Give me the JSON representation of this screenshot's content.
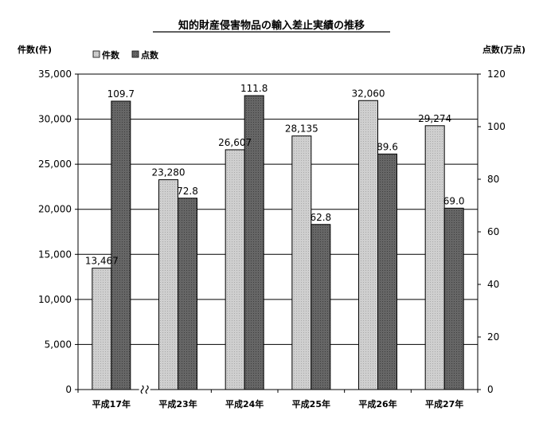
{
  "chart_data": {
    "type": "bar",
    "title": "知的財産侵害物品の輸入差止実績の推移",
    "categories": [
      "平成17年",
      "平成23年",
      "平成24年",
      "平成25年",
      "平成26年",
      "平成27年"
    ],
    "series": [
      {
        "name": "件数",
        "axis": "left",
        "color": "#c8c8c8",
        "values": [
          13467,
          23280,
          26607,
          28135,
          32060,
          29274
        ],
        "labels": [
          "13,467",
          "23,280",
          "26,607",
          "28,135",
          "32,060",
          "29,274"
        ]
      },
      {
        "name": "点数",
        "axis": "right",
        "color": "#5a5a5a",
        "values": [
          109.7,
          72.8,
          111.8,
          62.8,
          89.6,
          69.0
        ],
        "labels": [
          "109.7",
          "72.8",
          "111.8",
          "62.8",
          "89.6",
          "69.0"
        ]
      }
    ],
    "ylabel_left": "件数(件)",
    "ylabel_right": "点数(万点)",
    "ylim_left": [
      0,
      35000
    ],
    "ylim_right": [
      0,
      120
    ],
    "yticks_left": [
      "0",
      "5,000",
      "10,000",
      "15,000",
      "20,000",
      "25,000",
      "30,000",
      "35,000"
    ],
    "yticks_right": [
      "0",
      "20",
      "40",
      "60",
      "80",
      "100",
      "120"
    ],
    "axis_break_after_category": "平成17年",
    "legend_position": "top-left",
    "grid": true
  }
}
